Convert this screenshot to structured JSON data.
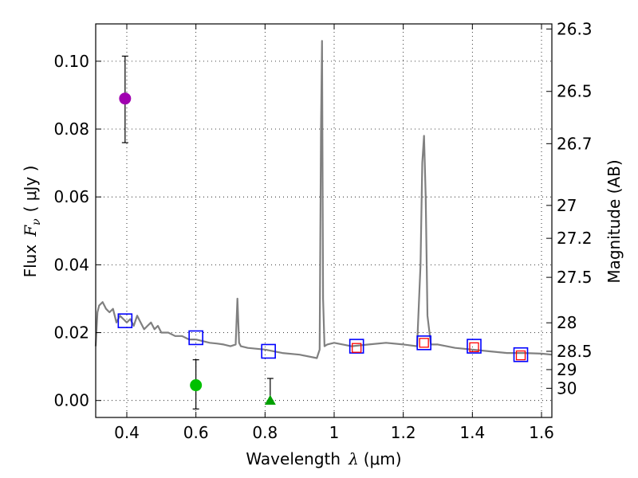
{
  "chart_data": {
    "type": "scatter",
    "xlabel_prefix": "Wavelength",
    "xlabel_symbol": "λ",
    "xlabel_unit": "(μm)",
    "ylabel_prefix": "Flux",
    "ylabel_symbol": "F",
    "ylabel_subscript": "ν",
    "ylabel_unit": "( μJy )",
    "y2label": "Magnitude (AB)",
    "xlim": [
      0.31,
      1.63
    ],
    "ylim": [
      -0.005,
      0.111
    ],
    "x_ticks": [
      0.4,
      0.6,
      0.8,
      1.0,
      1.2,
      1.4,
      1.6
    ],
    "x_tick_labels": [
      "0.4",
      "0.6",
      "0.8",
      "1",
      "1.2",
      "1.4",
      "1.6"
    ],
    "y_ticks": [
      0.0,
      0.02,
      0.04,
      0.06,
      0.08,
      0.1
    ],
    "y_tick_labels": [
      "0.00",
      "0.02",
      "0.04",
      "0.06",
      "0.08",
      "0.10"
    ],
    "y2_ticks": [
      {
        "label": "26.3",
        "flux": 0.1095
      },
      {
        "label": "26.5",
        "flux": 0.0911
      },
      {
        "label": "26.7",
        "flux": 0.0757
      },
      {
        "label": "27",
        "flux": 0.0575
      },
      {
        "label": "27.2",
        "flux": 0.0478
      },
      {
        "label": "27.5",
        "flux": 0.0363
      },
      {
        "label": "28",
        "flux": 0.0229
      },
      {
        "label": "28.5",
        "flux": 0.0145
      },
      {
        "label": "29",
        "flux": 0.0091
      },
      {
        "label": "30",
        "flux": 0.0036
      }
    ],
    "grid": "dotted",
    "spectrum_color": "#808080",
    "spectrum": {
      "x": [
        0.31,
        0.315,
        0.32,
        0.33,
        0.34,
        0.35,
        0.36,
        0.37,
        0.38,
        0.39,
        0.4,
        0.41,
        0.42,
        0.43,
        0.44,
        0.45,
        0.46,
        0.47,
        0.48,
        0.49,
        0.5,
        0.52,
        0.54,
        0.56,
        0.58,
        0.6,
        0.62,
        0.64,
        0.66,
        0.68,
        0.7,
        0.715,
        0.72,
        0.725,
        0.73,
        0.75,
        0.8,
        0.85,
        0.9,
        0.95,
        0.958,
        0.962,
        0.965,
        0.968,
        0.972,
        0.98,
        1.0,
        1.05,
        1.1,
        1.15,
        1.2,
        1.24,
        1.25,
        1.255,
        1.26,
        1.265,
        1.27,
        1.28,
        1.3,
        1.35,
        1.4,
        1.45,
        1.5,
        1.55,
        1.6,
        1.63
      ],
      "y": [
        0.016,
        0.026,
        0.028,
        0.029,
        0.027,
        0.026,
        0.027,
        0.023,
        0.025,
        0.024,
        0.023,
        0.024,
        0.022,
        0.025,
        0.023,
        0.021,
        0.022,
        0.023,
        0.021,
        0.022,
        0.02,
        0.02,
        0.019,
        0.019,
        0.018,
        0.018,
        0.0175,
        0.017,
        0.0168,
        0.0165,
        0.016,
        0.0165,
        0.03,
        0.017,
        0.016,
        0.0155,
        0.015,
        0.014,
        0.0135,
        0.0125,
        0.015,
        0.08,
        0.106,
        0.03,
        0.016,
        0.0165,
        0.017,
        0.016,
        0.0165,
        0.017,
        0.0165,
        0.016,
        0.04,
        0.07,
        0.078,
        0.06,
        0.025,
        0.0165,
        0.0165,
        0.0155,
        0.015,
        0.0145,
        0.014,
        0.014,
        0.0138,
        0.0135
      ]
    },
    "model_points": [
      {
        "x": 0.395,
        "y": 0.0235
      },
      {
        "x": 0.6,
        "y": 0.0185
      },
      {
        "x": 0.81,
        "y": 0.0145
      },
      {
        "x": 1.065,
        "y": 0.016
      },
      {
        "x": 1.26,
        "y": 0.017
      },
      {
        "x": 1.405,
        "y": 0.016
      },
      {
        "x": 1.54,
        "y": 0.0135
      }
    ],
    "model_color": "#0000ff",
    "observed_squares": [
      {
        "x": 1.065,
        "y": 0.0155
      },
      {
        "x": 1.26,
        "y": 0.017
      },
      {
        "x": 1.405,
        "y": 0.0157
      },
      {
        "x": 1.54,
        "y": 0.0133
      }
    ],
    "observed_square_color": "#ff0000",
    "detections": [
      {
        "x": 0.395,
        "y": 0.089,
        "err_low": 0.076,
        "err_high": 0.1015,
        "color": "#a000b0"
      },
      {
        "x": 0.6,
        "y": 0.0045,
        "err_low": -0.0025,
        "err_high": 0.012,
        "color": "#00c000"
      }
    ],
    "upper_limits": [
      {
        "x": 0.815,
        "y": 0.0,
        "err_low": 0.0,
        "err_high": 0.0065,
        "color": "#00a000"
      }
    ]
  }
}
